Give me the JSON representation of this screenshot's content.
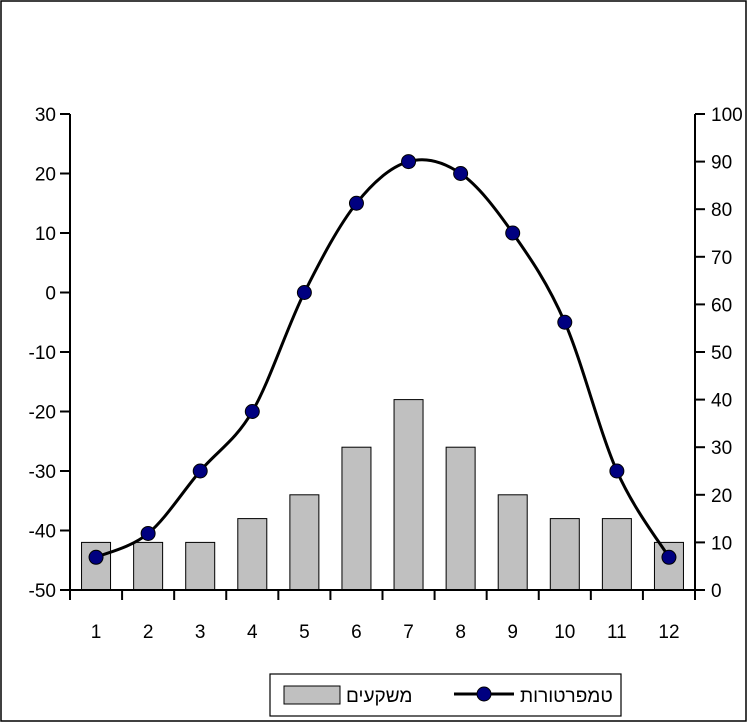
{
  "chart_data": {
    "type": "bar+line",
    "categories": [
      "1",
      "2",
      "3",
      "4",
      "5",
      "6",
      "7",
      "8",
      "9",
      "10",
      "11",
      "12"
    ],
    "left_axis": {
      "ylim": [
        -50,
        30
      ],
      "ticks": [
        30,
        20,
        10,
        0,
        -10,
        -20,
        -30,
        -40,
        -50
      ]
    },
    "right_axis": {
      "ylim": [
        0,
        100
      ],
      "ticks": [
        100,
        90,
        80,
        70,
        60,
        50,
        40,
        30,
        20,
        10,
        0
      ]
    },
    "series": [
      {
        "name": "משקעים",
        "type": "bar",
        "axis": "right",
        "color": "#c0c0c0",
        "values": [
          10,
          10,
          10,
          15,
          20,
          30,
          40,
          30,
          20,
          15,
          15,
          10
        ]
      },
      {
        "name": "טמפרטורות",
        "type": "line",
        "axis": "left",
        "color": "#000000",
        "marker_color": "#000080",
        "values": [
          -44.5,
          -40.5,
          -30,
          -20,
          0,
          15,
          22,
          20,
          10,
          -5,
          -30,
          -44.5
        ]
      }
    ],
    "legend": {
      "position": "bottom-center"
    },
    "grid": false
  }
}
